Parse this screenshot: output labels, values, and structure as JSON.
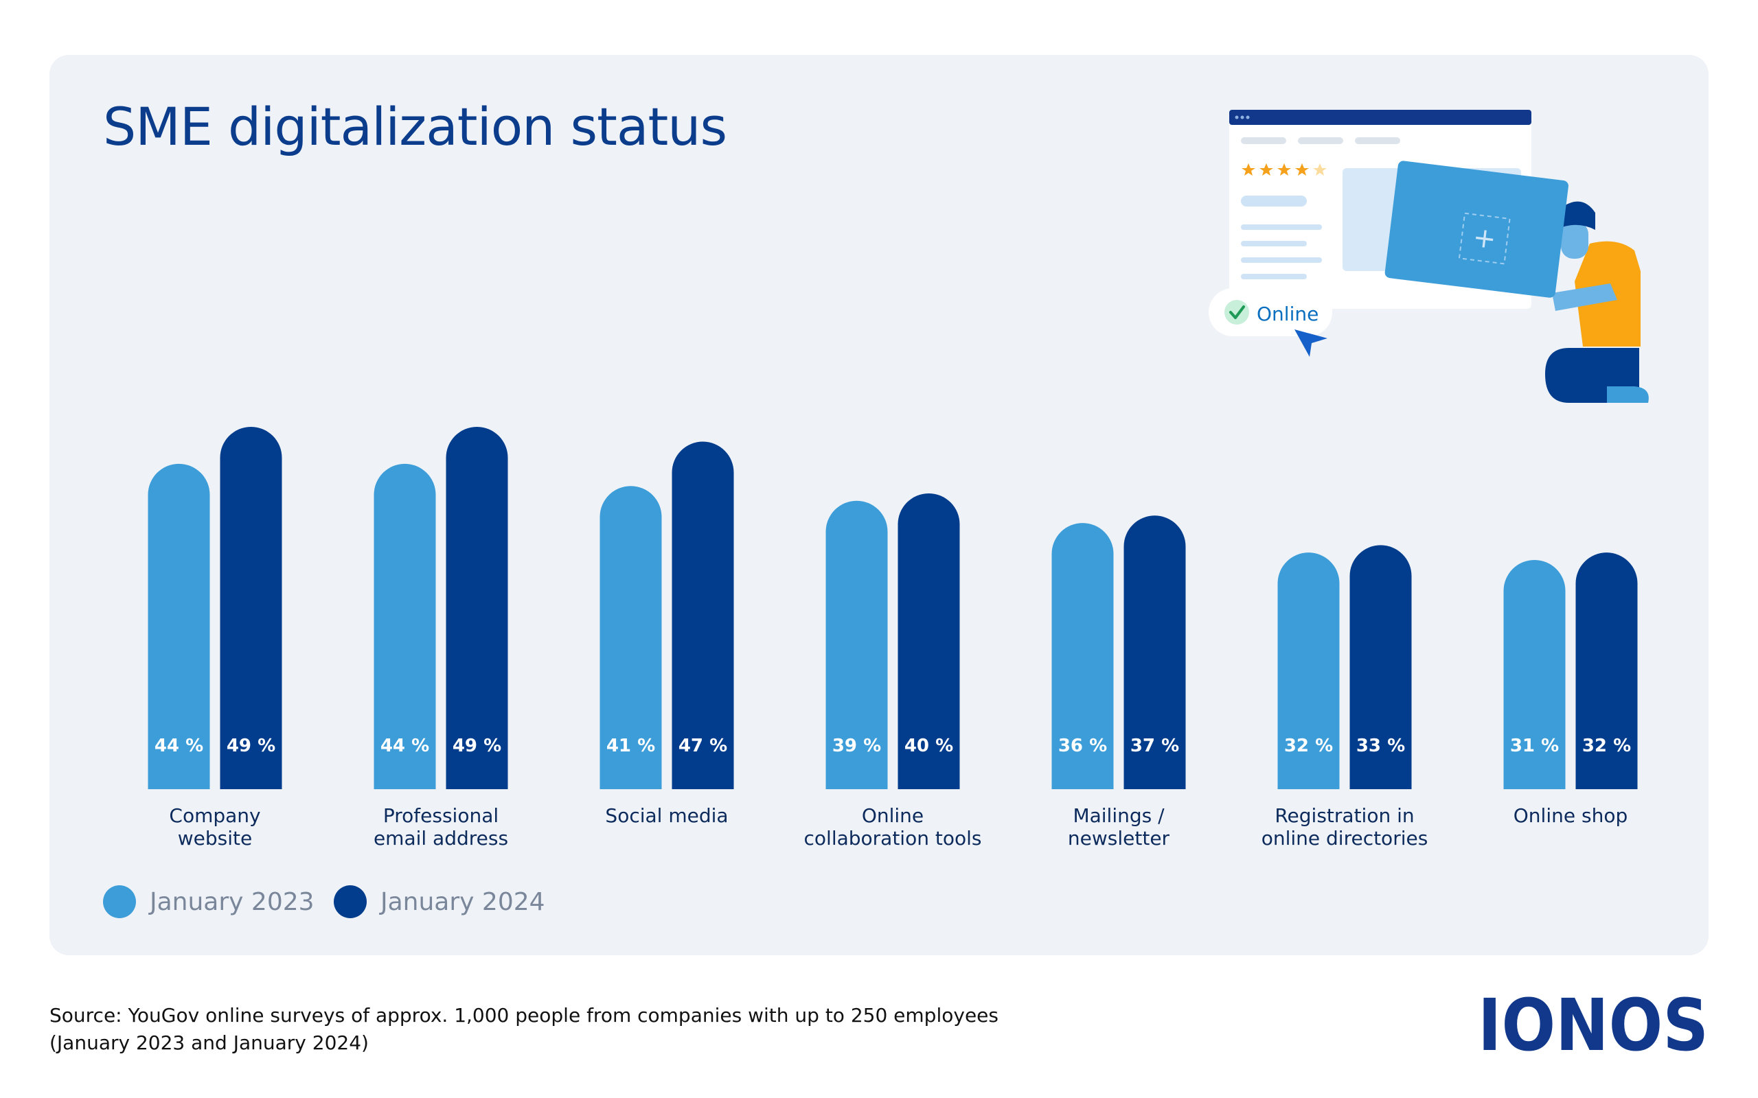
{
  "title": "SME digitalization status",
  "chart_data": {
    "type": "bar",
    "title": "SME digitalization status",
    "categories": [
      [
        "Company",
        "website"
      ],
      [
        "Professional",
        "email address"
      ],
      [
        "Social media"
      ],
      [
        "Online",
        "collaboration tools"
      ],
      [
        "Mailings /",
        "newsletter"
      ],
      [
        "Registration in",
        "online directories"
      ],
      [
        "Online shop"
      ]
    ],
    "series": [
      {
        "name": "January 2023",
        "color": "#3d9dd9",
        "values": [
          44,
          44,
          41,
          39,
          36,
          32,
          31
        ]
      },
      {
        "name": "January 2024",
        "color": "#023c8c",
        "values": [
          49,
          49,
          47,
          40,
          37,
          33,
          32
        ]
      }
    ],
    "value_suffix": " %",
    "xlabel": "",
    "ylabel": "",
    "ylim": [
      0,
      49
    ],
    "grid": false,
    "legend_position": "bottom-left"
  },
  "legend": {
    "item1": "January 2023",
    "item2": "January 2024",
    "color1": "#3d9dd9",
    "color2": "#023c8c"
  },
  "illustration": {
    "badge_text": "Online",
    "plus_symbol": "+"
  },
  "source": {
    "line1": "Source: YouGov online surveys of approx. 1,000 people from companies with up to 250 employees",
    "line2": "(January 2023 and January 2024)"
  },
  "brand": {
    "logo_text": "IONOS",
    "color": "#11388a"
  }
}
